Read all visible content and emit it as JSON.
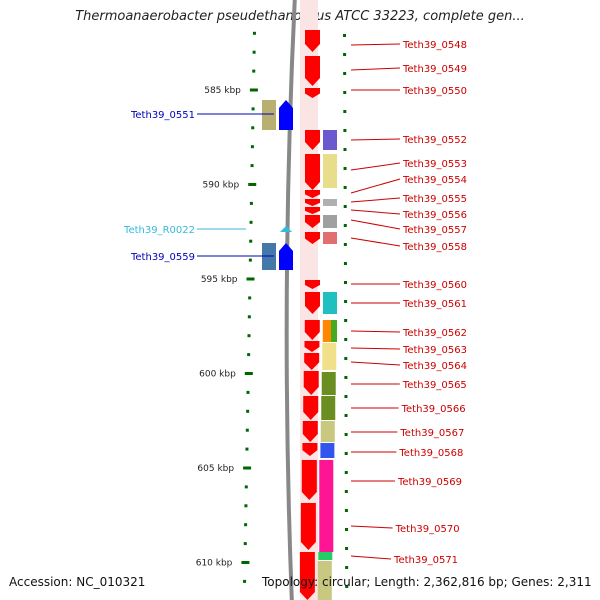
{
  "title": "Thermoanaerobacter pseudethanolicus ATCC 33223, complete gen...",
  "accession": "Accession: NC_010321",
  "topology": "Topology: circular; Length: 2,362,816 bp; Genes: 2,311",
  "kbp_ticks": [
    {
      "label": "585 kbp",
      "kbp": 585
    },
    {
      "label": "590 kbp",
      "kbp": 590
    },
    {
      "label": "595 kbp",
      "kbp": 595
    },
    {
      "label": "600 kbp",
      "kbp": 600
    },
    {
      "label": "605 kbp",
      "kbp": 605
    },
    {
      "label": "610 kbp",
      "kbp": 610
    }
  ],
  "right_genes": [
    {
      "name": "Teth39_0548",
      "color": "#cc0000"
    },
    {
      "name": "Teth39_0549",
      "color": "#cc0000"
    },
    {
      "name": "Teth39_0550",
      "color": "#cc0000"
    },
    {
      "name": "Teth39_0552",
      "color": "#cc0000"
    },
    {
      "name": "Teth39_0553",
      "color": "#cc0000"
    },
    {
      "name": "Teth39_0554",
      "color": "#cc0000"
    },
    {
      "name": "Teth39_0555",
      "color": "#cc0000"
    },
    {
      "name": "Teth39_0556",
      "color": "#cc0000"
    },
    {
      "name": "Teth39_0557",
      "color": "#cc0000"
    },
    {
      "name": "Teth39_0558",
      "color": "#cc0000"
    },
    {
      "name": "Teth39_0560",
      "color": "#cc0000"
    },
    {
      "name": "Teth39_0561",
      "color": "#cc0000"
    },
    {
      "name": "Teth39_0562",
      "color": "#cc0000"
    },
    {
      "name": "Teth39_0563",
      "color": "#cc0000"
    },
    {
      "name": "Teth39_0564",
      "color": "#cc0000"
    },
    {
      "name": "Teth39_0565",
      "color": "#cc0000"
    },
    {
      "name": "Teth39_0566",
      "color": "#cc0000"
    },
    {
      "name": "Teth39_0567",
      "color": "#cc0000"
    },
    {
      "name": "Teth39_0568",
      "color": "#cc0000"
    },
    {
      "name": "Teth39_0569",
      "color": "#cc0000"
    },
    {
      "name": "Teth39_0570",
      "color": "#cc0000"
    },
    {
      "name": "Teth39_0571",
      "color": "#cc0000"
    }
  ],
  "left_genes": [
    {
      "name": "Teth39_0551",
      "color": "#0000bb"
    },
    {
      "name": "Teth39_R0022",
      "color": "#33bbdd"
    },
    {
      "name": "Teth39_0559",
      "color": "#0000bb"
    }
  ],
  "colors": {
    "forward_gene": "#ff0000",
    "reverse_gene": "#0000ff",
    "rna_gene": "#33bbdd",
    "backbone": "#888888",
    "tick": "#006600",
    "tick_label": "#222222"
  }
}
